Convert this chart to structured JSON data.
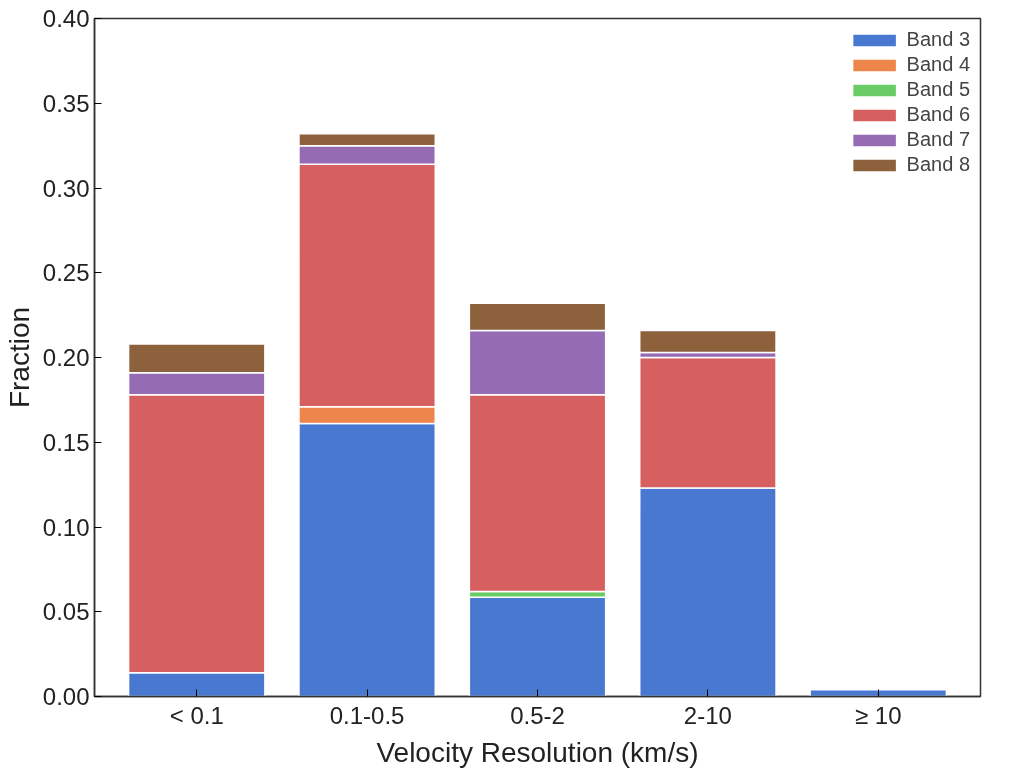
{
  "chart_data": {
    "type": "bar",
    "stacked": true,
    "xlabel": "Velocity Resolution (km/s)",
    "ylabel": "Fraction",
    "categories": [
      "< 0.1",
      "0.1-0.5",
      "0.5-2",
      "2-10",
      "≥ 10"
    ],
    "series": [
      {
        "name": "Band 3",
        "color": "#4878d0",
        "values": [
          0.014,
          0.161,
          0.0585,
          0.123,
          0.004
        ]
      },
      {
        "name": "Band 4",
        "color": "#ee854a",
        "values": [
          0,
          0.01,
          0,
          0,
          0
        ]
      },
      {
        "name": "Band 5",
        "color": "#6acc64",
        "values": [
          0,
          0,
          0.0035,
          0,
          0
        ]
      },
      {
        "name": "Band 6",
        "color": "#d65f5f",
        "values": [
          0.164,
          0.143,
          0.116,
          0.077,
          0
        ]
      },
      {
        "name": "Band 7",
        "color": "#956cb4",
        "values": [
          0.013,
          0.011,
          0.038,
          0.003,
          0
        ]
      },
      {
        "name": "Band 8",
        "color": "#8c613c",
        "values": [
          0.017,
          0.007,
          0.016,
          0.013,
          0
        ]
      }
    ],
    "ylim": [
      0,
      0.4
    ],
    "yticks": [
      {
        "value": 0,
        "label": "0.00"
      },
      {
        "value": 0.05,
        "label": "0.05"
      },
      {
        "value": 0.1,
        "label": "0.10"
      },
      {
        "value": 0.15,
        "label": "0.15"
      },
      {
        "value": 0.2,
        "label": "0.20"
      },
      {
        "value": 0.25,
        "label": "0.25"
      },
      {
        "value": 0.3,
        "label": "0.30"
      },
      {
        "value": 0.35,
        "label": "0.35"
      },
      {
        "value": 0.4,
        "label": "0.40"
      }
    ],
    "grid": false,
    "legend": "top right"
  }
}
